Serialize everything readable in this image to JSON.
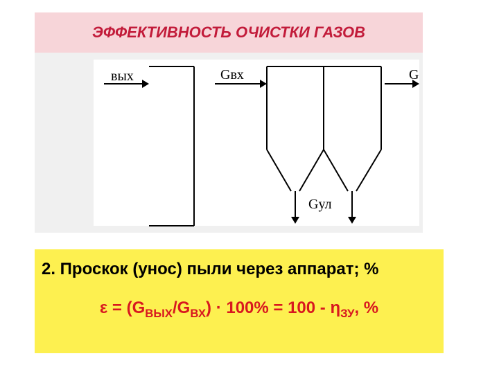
{
  "title": {
    "text": "ЭФФЕКТИВНОСТЬ ОЧИСТКИ ГАЗОВ",
    "bg_color": "#f7d5d9",
    "text_color": "#c21b3a",
    "fontsize": 22
  },
  "diagram": {
    "bg_color": "#f0f0f0",
    "inner_bg": "#ffffff",
    "stroke": "#000000",
    "stroke_width": 2,
    "label_fontsize": 20,
    "label_color": "#000000",
    "labels": {
      "out_partial": "вых",
      "g_in": "Gвх",
      "g_out_right": "G",
      "g_captured": "Gул"
    },
    "arrow": {
      "head_w": 10,
      "head_h": 6
    }
  },
  "formula": {
    "bg_color": "#fdf050",
    "line1_color": "#000000",
    "line2_color": "#d8181f",
    "fontsize": 24,
    "line1": "2. Проскок (унос) пыли через аппарат; %",
    "line2_prefix": "ε = (G",
    "line2_sub1": "ВЫХ",
    "line2_mid1": "/G",
    "line2_sub2": "ВХ",
    "line2_mid2": ") · 100% = 100 - η",
    "line2_sub3": "ЗУ",
    "line2_suffix": ", %"
  }
}
